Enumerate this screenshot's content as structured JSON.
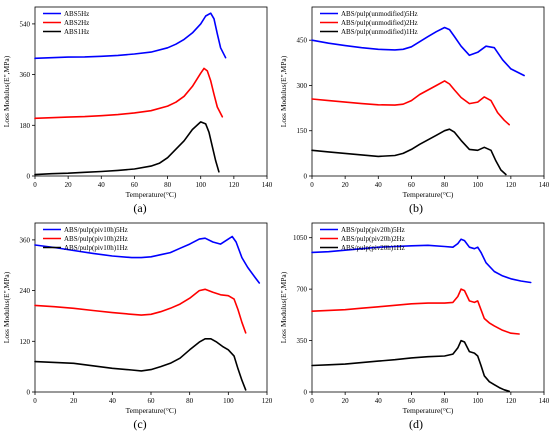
{
  "chart_data": [
    {
      "type": "line",
      "caption": "(a)",
      "xlabel": "Temperature(°C)",
      "ylabel": "Loss Modulus(E\",MPa)",
      "xlim": [
        0,
        140
      ],
      "ylim": [
        0,
        600
      ],
      "xticks": [
        0,
        20,
        40,
        60,
        80,
        100,
        120,
        140
      ],
      "yticks": [
        0,
        180,
        360,
        540
      ],
      "legend_position": "top-left",
      "series": [
        {
          "name": "ABS5Hz",
          "color": "#0000ff",
          "x": [
            0,
            10,
            20,
            30,
            40,
            50,
            60,
            70,
            80,
            85,
            90,
            95,
            100,
            103,
            106,
            108,
            110,
            112,
            115
          ],
          "y": [
            418,
            420,
            422,
            423,
            425,
            428,
            433,
            440,
            455,
            468,
            485,
            508,
            540,
            568,
            578,
            558,
            505,
            455,
            420
          ]
        },
        {
          "name": "ABS2Hz",
          "color": "#ff0000",
          "x": [
            0,
            10,
            20,
            30,
            40,
            50,
            60,
            70,
            80,
            85,
            90,
            95,
            100,
            102,
            104,
            106,
            108,
            110,
            113
          ],
          "y": [
            205,
            207,
            209,
            211,
            214,
            218,
            224,
            232,
            248,
            262,
            283,
            318,
            365,
            382,
            373,
            338,
            290,
            245,
            210
          ]
        },
        {
          "name": "ABS1Hz",
          "color": "#000000",
          "x": [
            0,
            10,
            20,
            30,
            40,
            50,
            60,
            70,
            75,
            80,
            85,
            90,
            95,
            100,
            103,
            105,
            107,
            109,
            111
          ],
          "y": [
            5,
            8,
            10,
            13,
            16,
            20,
            25,
            35,
            45,
            65,
            95,
            125,
            165,
            192,
            185,
            155,
            105,
            55,
            15
          ]
        }
      ]
    },
    {
      "type": "line",
      "caption": "(b)",
      "xlabel": "Temperature(°C)",
      "ylabel": "Loss Modulus(E\",MPa)",
      "xlim": [
        0,
        140
      ],
      "ylim": [
        0,
        560
      ],
      "xticks": [
        0,
        20,
        40,
        60,
        80,
        100,
        120,
        140
      ],
      "yticks": [
        0,
        150,
        300,
        450
      ],
      "legend_position": "top-left",
      "series": [
        {
          "name": "ABS/pulp(unmodified)5Hz",
          "color": "#0000ff",
          "x": [
            0,
            10,
            20,
            30,
            40,
            50,
            55,
            60,
            65,
            70,
            75,
            80,
            83,
            86,
            90,
            95,
            100,
            105,
            110,
            115,
            120,
            128
          ],
          "y": [
            450,
            440,
            432,
            425,
            420,
            418,
            420,
            428,
            445,
            462,
            478,
            492,
            485,
            462,
            430,
            400,
            410,
            430,
            425,
            385,
            355,
            333
          ]
        },
        {
          "name": "ABS/pulp(unmodified)2Hz",
          "color": "#ff0000",
          "x": [
            0,
            10,
            20,
            30,
            40,
            50,
            55,
            60,
            65,
            70,
            75,
            80,
            83,
            86,
            90,
            95,
            100,
            104,
            108,
            112,
            116,
            119
          ],
          "y": [
            255,
            250,
            245,
            240,
            236,
            235,
            238,
            250,
            270,
            285,
            300,
            315,
            305,
            285,
            260,
            240,
            245,
            262,
            250,
            210,
            185,
            170
          ]
        },
        {
          "name": "ABS/pulp(unmodified)1Hz",
          "color": "#000000",
          "x": [
            0,
            10,
            20,
            30,
            40,
            50,
            55,
            60,
            65,
            70,
            75,
            80,
            83,
            86,
            90,
            95,
            100,
            104,
            108,
            111,
            114,
            117
          ],
          "y": [
            85,
            80,
            75,
            70,
            65,
            68,
            75,
            88,
            105,
            120,
            135,
            150,
            155,
            145,
            118,
            88,
            85,
            95,
            85,
            50,
            20,
            5
          ]
        }
      ]
    },
    {
      "type": "line",
      "caption": "(c)",
      "xlabel": "Temperature(°C)",
      "ylabel": "Loss Modulus(E\",MPa)",
      "xlim": [
        0,
        120
      ],
      "ylim": [
        0,
        400
      ],
      "xticks": [
        0,
        20,
        40,
        60,
        80,
        100,
        120
      ],
      "yticks": [
        0,
        120,
        240,
        360
      ],
      "legend_position": "top-left",
      "series": [
        {
          "name": "ABS/pulp(piv10h)5Hz",
          "color": "#0000ff",
          "x": [
            0,
            10,
            20,
            30,
            40,
            50,
            55,
            60,
            65,
            70,
            75,
            80,
            85,
            88,
            92,
            96,
            100,
            102,
            104,
            107,
            110,
            114,
            116
          ],
          "y": [
            348,
            342,
            335,
            328,
            322,
            318,
            318,
            320,
            325,
            330,
            340,
            350,
            362,
            364,
            355,
            350,
            362,
            368,
            355,
            318,
            295,
            270,
            258
          ]
        },
        {
          "name": "ABS/pulp(piv10h)2Hz",
          "color": "#ff0000",
          "x": [
            0,
            10,
            20,
            30,
            40,
            50,
            55,
            60,
            65,
            70,
            75,
            80,
            85,
            88,
            92,
            96,
            100,
            103,
            105,
            107,
            109
          ],
          "y": [
            205,
            202,
            198,
            193,
            188,
            184,
            182,
            184,
            190,
            198,
            208,
            222,
            240,
            243,
            236,
            230,
            228,
            220,
            195,
            165,
            140
          ]
        },
        {
          "name": "ABS/pulp(piv10h)1Hz",
          "color": "#000000",
          "x": [
            0,
            10,
            20,
            30,
            40,
            50,
            55,
            60,
            65,
            70,
            75,
            80,
            85,
            88,
            91,
            94,
            97,
            100,
            103,
            105,
            107,
            109
          ],
          "y": [
            72,
            70,
            68,
            62,
            56,
            52,
            50,
            53,
            60,
            68,
            80,
            100,
            118,
            126,
            126,
            118,
            108,
            100,
            85,
            55,
            28,
            5
          ]
        }
      ]
    },
    {
      "type": "line",
      "caption": "(d)",
      "xlabel": "Temperature(°C)",
      "ylabel": "Loss Modulus(E\",MPa)",
      "xlim": [
        0,
        140
      ],
      "ylim": [
        0,
        1150
      ],
      "xticks": [
        0,
        20,
        40,
        60,
        80,
        100,
        120,
        140
      ],
      "yticks": [
        0,
        350,
        700,
        1050
      ],
      "legend_position": "top-left",
      "series": [
        {
          "name": "ABS/pulp(piv20h)5Hz",
          "color": "#0000ff",
          "x": [
            0,
            10,
            20,
            30,
            40,
            50,
            60,
            70,
            80,
            85,
            88,
            90,
            92,
            95,
            98,
            100,
            102,
            105,
            110,
            115,
            120,
            126,
            132
          ],
          "y": [
            950,
            955,
            965,
            975,
            985,
            990,
            995,
            998,
            990,
            985,
            1010,
            1040,
            1030,
            985,
            975,
            985,
            950,
            880,
            820,
            790,
            770,
            755,
            745
          ]
        },
        {
          "name": "ABS/pulp(piv20h)2Hz",
          "color": "#ff0000",
          "x": [
            0,
            10,
            20,
            30,
            40,
            50,
            60,
            70,
            80,
            85,
            88,
            90,
            92,
            95,
            98,
            100,
            102,
            104,
            107,
            110,
            115,
            120,
            125
          ],
          "y": [
            550,
            555,
            560,
            570,
            580,
            590,
            600,
            605,
            605,
            610,
            650,
            700,
            690,
            620,
            610,
            620,
            560,
            500,
            470,
            450,
            420,
            400,
            395
          ]
        },
        {
          "name": "ABS/pulp(piv20h)1Hz",
          "color": "#000000",
          "x": [
            0,
            10,
            20,
            30,
            40,
            50,
            60,
            70,
            80,
            85,
            88,
            90,
            92,
            95,
            98,
            100,
            102,
            104,
            107,
            110,
            113,
            116,
            119
          ],
          "y": [
            180,
            185,
            190,
            200,
            210,
            220,
            232,
            240,
            245,
            258,
            300,
            350,
            340,
            275,
            265,
            245,
            180,
            110,
            70,
            50,
            30,
            15,
            5
          ]
        }
      ]
    }
  ]
}
